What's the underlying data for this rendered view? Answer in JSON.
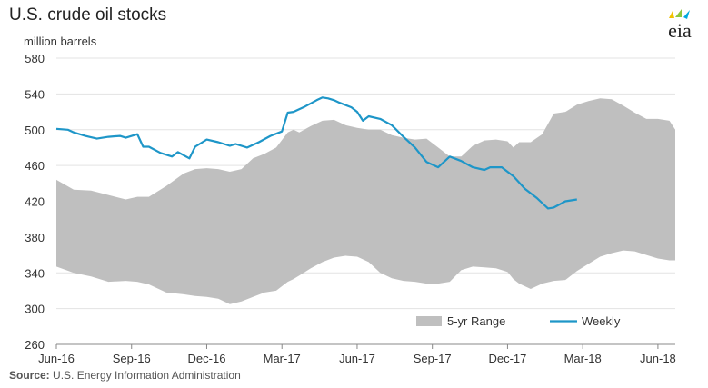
{
  "title": "U.S. crude oil stocks",
  "source": {
    "label": "Source:",
    "text": " U.S. Energy Information Administration"
  },
  "logo": {
    "text": "eia",
    "colors": [
      "#f2c200",
      "#8dc63f",
      "#00a9e0"
    ]
  },
  "chart_data": {
    "type": "area",
    "title": "U.S. crude oil stocks",
    "ylabel": "million barrels",
    "xlabel": "",
    "ylim": [
      260,
      580
    ],
    "yticks": [
      260,
      300,
      340,
      380,
      420,
      460,
      500,
      540,
      580
    ],
    "xlim": [
      0,
      107
    ],
    "xticks": [
      {
        "label": "Jun-16",
        "x": 0
      },
      {
        "label": "Sep-16",
        "x": 13
      },
      {
        "label": "Dec-16",
        "x": 26
      },
      {
        "label": "Mar-17",
        "x": 39
      },
      {
        "label": "Jun-17",
        "x": 52
      },
      {
        "label": "Sep-17",
        "x": 65
      },
      {
        "label": "Dec-17",
        "x": 78
      },
      {
        "label": "Mar-18",
        "x": 91
      },
      {
        "label": "Jun-18",
        "x": 104
      }
    ],
    "grid": "horizontal",
    "legend": "bottom-right",
    "colors": {
      "range": "#bfbfbf",
      "weekly": "#1e96c8"
    },
    "series": [
      {
        "name": "5-yr Range",
        "kind": "band",
        "x": [
          0,
          3,
          6,
          9,
          12,
          14,
          16,
          19,
          22,
          24,
          26,
          28,
          30,
          32,
          34,
          36,
          38,
          40,
          41,
          42,
          44,
          46,
          48,
          50,
          52,
          54,
          56,
          58,
          60,
          62,
          64,
          66,
          68,
          70,
          72,
          74,
          76,
          78,
          79,
          80,
          82,
          84,
          86,
          88,
          90,
          92,
          94,
          96,
          98,
          100,
          102,
          104,
          106,
          107
        ],
        "high": [
          444,
          433,
          432,
          427,
          422,
          425,
          425,
          437,
          451,
          456,
          457,
          456,
          453,
          456,
          468,
          473,
          480,
          497,
          500,
          497,
          504,
          510,
          511,
          505,
          502,
          500,
          500,
          494,
          491,
          489,
          490,
          480,
          470,
          470,
          482,
          488,
          489,
          487,
          480,
          486,
          486,
          495,
          518,
          520,
          528,
          532,
          535,
          534,
          527,
          519,
          512,
          512,
          510,
          500
        ],
        "low": [
          347,
          340,
          336,
          330,
          331,
          330,
          327,
          318,
          316,
          314,
          313,
          311,
          305,
          308,
          313,
          318,
          320,
          330,
          333,
          337,
          345,
          352,
          357,
          359,
          358,
          352,
          340,
          334,
          331,
          330,
          328,
          328,
          330,
          343,
          347,
          346,
          345,
          341,
          333,
          328,
          322,
          328,
          331,
          332,
          342,
          350,
          358,
          362,
          365,
          364,
          360,
          356,
          354,
          354
        ]
      },
      {
        "name": "Weekly",
        "kind": "line",
        "x": [
          0,
          2,
          3,
          5,
          7,
          9,
          11,
          12,
          14,
          15,
          16,
          18,
          20,
          21,
          23,
          24,
          26,
          28,
          29,
          30,
          31,
          33,
          35,
          37,
          39,
          40,
          41,
          43,
          45,
          46,
          47,
          48,
          49,
          51,
          52,
          53,
          54,
          56,
          58,
          60,
          62,
          64,
          66,
          68,
          70,
          72,
          74,
          75,
          77,
          79,
          81,
          83,
          84,
          85,
          86,
          88,
          90
        ],
        "y": [
          501,
          500,
          497,
          493,
          490,
          492,
          493,
          491,
          495,
          481,
          481,
          474,
          470,
          475,
          468,
          481,
          489,
          486,
          484,
          482,
          484,
          480,
          486,
          493,
          498,
          519,
          520,
          526,
          533,
          536,
          535,
          533,
          530,
          525,
          520,
          510,
          515,
          512,
          505,
          492,
          480,
          464,
          458,
          470,
          465,
          458,
          455,
          458,
          458,
          448,
          434,
          424,
          418,
          412,
          413,
          420,
          422
        ]
      }
    ]
  }
}
